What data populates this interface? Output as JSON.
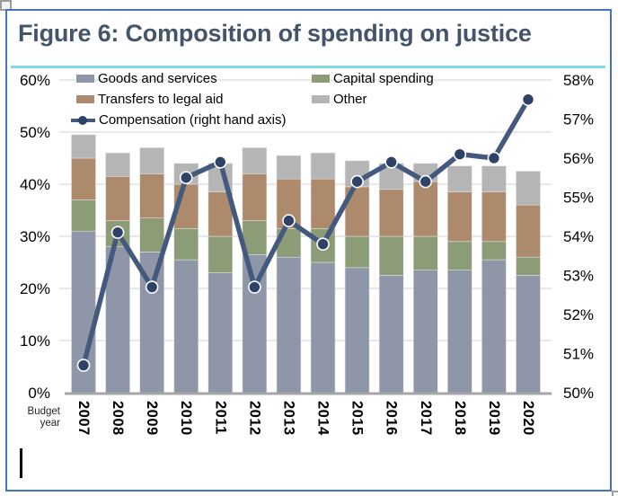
{
  "figure": {
    "title": "Figure 6: Composition of spending on justice"
  },
  "chart_data": {
    "type": "stacked-bar+line",
    "title": "Figure 6: Composition of spending on justice",
    "x_axis_label": "Budget year",
    "categories": [
      "2007",
      "2008",
      "2009",
      "2010",
      "2011",
      "2012",
      "2013",
      "2014",
      "2015",
      "2016",
      "2017",
      "2018",
      "2019",
      "2020"
    ],
    "series": [
      {
        "name": "Goods and services",
        "axis": "left",
        "color": "#8e96a7",
        "values": [
          31,
          28,
          27,
          25.5,
          23,
          26.5,
          26,
          25,
          24,
          22.5,
          23.5,
          23.5,
          25.5,
          22.5
        ]
      },
      {
        "name": "Capital spending",
        "axis": "left",
        "color": "#8c9c77",
        "values": [
          6,
          5,
          6.5,
          6,
          7,
          6.5,
          5.5,
          6.5,
          6,
          7.5,
          6.5,
          5.5,
          3.5,
          3.5
        ]
      },
      {
        "name": "Transfers to legal aid",
        "axis": "left",
        "color": "#ae8a6c",
        "values": [
          8,
          8.5,
          8.5,
          8.5,
          8.5,
          9,
          9.5,
          9.5,
          9.5,
          9,
          10.5,
          9.5,
          9.5,
          10
        ]
      },
      {
        "name": "Other",
        "axis": "left",
        "color": "#b5b5b5",
        "values": [
          4.5,
          4.5,
          5,
          4,
          5.5,
          5,
          4.5,
          5,
          5,
          5,
          3.5,
          5,
          5,
          6.5
        ]
      }
    ],
    "stack_order_bottom_to_top": [
      "Goods and services",
      "Capital spending",
      "Transfers to legal aid",
      "Other"
    ],
    "line_series": {
      "name": "Compensation (right hand axis)",
      "axis": "right",
      "color": "#44597e",
      "marker_color": "#2d4266",
      "values": [
        50.7,
        54.1,
        52.7,
        55.5,
        55.9,
        52.7,
        54.4,
        53.8,
        55.4,
        55.9,
        55.4,
        56.1,
        56.0,
        57.5
      ]
    },
    "left_axis": {
      "min": 0,
      "max": 60,
      "step": 10,
      "suffix": "%"
    },
    "right_axis": {
      "min": 50,
      "max": 58,
      "step": 1,
      "suffix": "%"
    },
    "grid": true,
    "legend_position": "top"
  },
  "colors": {
    "frame": "#4472c4",
    "title": "#44546a",
    "divider": "#7fdce4",
    "gridline": "#d9d9d9",
    "axis_line": "#a6a6a6"
  }
}
